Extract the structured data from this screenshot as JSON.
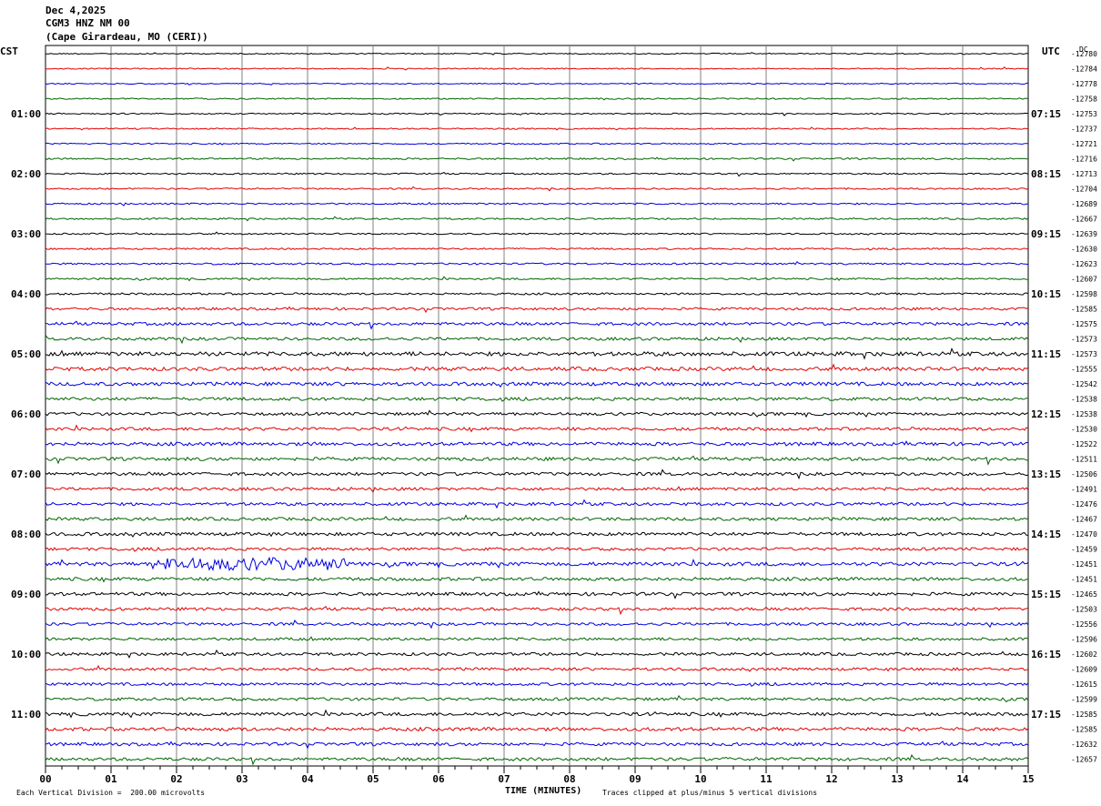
{
  "header": {
    "date": "Dec 4,2025",
    "station": "CGM3 HNZ NM 00",
    "location": "(Cape Girardeau, MO (CERI))"
  },
  "left_axis_label": "CST",
  "right_axis_label": "UTC",
  "dc_label": "DC",
  "footer": {
    "vertical_division": "Each Vertical Division =  200.00 microvolts",
    "xlabel": "TIME (MINUTES)",
    "clip_note": "Traces clipped at plus/minus 5 vertical divisions"
  },
  "colors": {
    "black": "#000000",
    "red": "#e00000",
    "blue": "#0000e0",
    "green": "#006400",
    "grid": "#808080"
  },
  "chart_data": {
    "type": "line",
    "x_ticks": [
      "00",
      "01",
      "02",
      "03",
      "04",
      "05",
      "06",
      "07",
      "08",
      "09",
      "10",
      "11",
      "12",
      "13",
      "14",
      "15"
    ],
    "xlim": [
      0,
      15
    ],
    "grid": true,
    "left_time_labels": [
      "01:00",
      "02:00",
      "03:00",
      "04:00",
      "05:00",
      "06:00",
      "07:00",
      "08:00",
      "09:00",
      "10:00",
      "11:00"
    ],
    "right_time_labels": [
      "07:15",
      "08:15",
      "09:15",
      "10:15",
      "11:15",
      "12:15",
      "13:15",
      "14:15",
      "15:15",
      "16:15",
      "17:15"
    ],
    "dc_offsets": [
      "-12780",
      "-12784",
      "-12778",
      "-12758",
      "-12753",
      "-12737",
      "-12721",
      "-12716",
      "-12713",
      "-12704",
      "-12689",
      "-12667",
      "-12639",
      "-12630",
      "-12623",
      "-12607",
      "-12598",
      "-12585",
      "-12575",
      "-12573",
      "-12573",
      "-12555",
      "-12542",
      "-12538",
      "-12538",
      "-12530",
      "-12522",
      "-12511",
      "-12506",
      "-12491",
      "-12476",
      "-12467",
      "-12470",
      "-12459",
      "-12451",
      "-12451",
      "-12465",
      "-12503",
      "-12556",
      "-12596",
      "-12602",
      "-12609",
      "-12615",
      "-12599",
      "-12585",
      "-12585",
      "-12632",
      "-12657"
    ],
    "trace_noise_levels": [
      0.6,
      0.6,
      0.6,
      0.7,
      0.7,
      0.7,
      0.7,
      0.9,
      0.8,
      0.8,
      0.9,
      0.9,
      0.8,
      0.9,
      1.0,
      1.0,
      1.1,
      1.4,
      1.6,
      1.6,
      2.2,
      2.0,
      1.9,
      1.7,
      1.6,
      1.7,
      1.9,
      1.8,
      1.7,
      1.6,
      1.7,
      1.7,
      1.8,
      1.6,
      2.0,
      1.8,
      1.8,
      1.6,
      1.5,
      1.5,
      1.6,
      1.5,
      1.5,
      1.6,
      1.8,
      1.9,
      1.7,
      1.7
    ]
  }
}
